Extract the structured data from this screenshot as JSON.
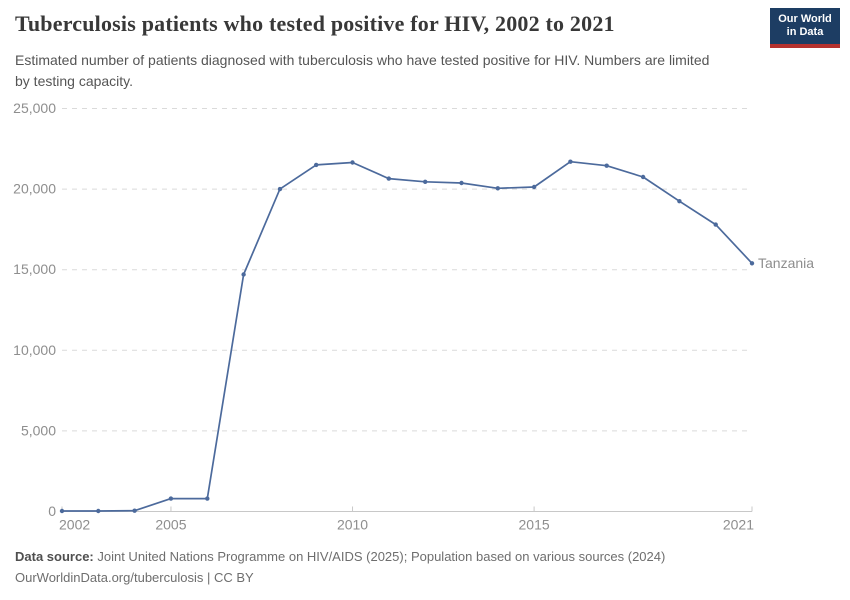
{
  "header": {
    "title": "Tuberculosis patients who tested positive for HIV, 2002 to 2021",
    "subtitle": "Estimated number of patients diagnosed with tuberculosis who have tested positive for HIV. Numbers are limited by testing capacity.",
    "logo": {
      "line1": "Our World",
      "line2": "in Data",
      "bg_color": "#1d3d63",
      "accent_color": "#b5322e"
    }
  },
  "chart_data": {
    "type": "line",
    "title": "Tuberculosis patients who tested positive for HIV, 2002 to 2021",
    "subtitle": "Estimated number of patients diagnosed with tuberculosis who have tested positive for HIV. Numbers are limited by testing capacity.",
    "xlabel": "",
    "ylabel": "",
    "x": [
      2002,
      2003,
      2004,
      2005,
      2006,
      2007,
      2008,
      2009,
      2010,
      2011,
      2012,
      2013,
      2014,
      2015,
      2016,
      2017,
      2018,
      2019,
      2020,
      2021
    ],
    "series": [
      {
        "name": "Tanzania",
        "color": "#4c6a9c",
        "values": [
          30,
          30,
          50,
          800,
          800,
          14700,
          20000,
          21500,
          21650,
          20650,
          20450,
          20380,
          20050,
          20130,
          21700,
          21450,
          20750,
          19250,
          17800,
          15400
        ]
      }
    ],
    "ylim": [
      0,
      25000
    ],
    "xlim": [
      2002,
      2021
    ],
    "grid": "horizontal-dashed",
    "legend_position": "end-of-line-label",
    "yticks": [
      {
        "v": 0,
        "label": "0"
      },
      {
        "v": 5000,
        "label": "5,000"
      },
      {
        "v": 10000,
        "label": "10,000"
      },
      {
        "v": 15000,
        "label": "15,000"
      },
      {
        "v": 20000,
        "label": "20,000"
      },
      {
        "v": 25000,
        "label": "25,000"
      }
    ],
    "xticks": [
      {
        "v": 2002,
        "label": "2002"
      },
      {
        "v": 2005,
        "label": "2005"
      },
      {
        "v": 2010,
        "label": "2010"
      },
      {
        "v": 2015,
        "label": "2015"
      },
      {
        "v": 2021,
        "label": "2021"
      }
    ],
    "colors": {
      "line": "#4c6a9c",
      "grid": "#dadada",
      "axis": "#c8c8c8",
      "tick_label": "#8e8e8e"
    }
  },
  "footer": {
    "datasource_label": "Data source:",
    "datasource_text": " Joint United Nations Programme on HIV/AIDS (2025); Population based on various sources (2024)",
    "license_text": "OurWorldinData.org/tuberculosis | CC BY"
  }
}
